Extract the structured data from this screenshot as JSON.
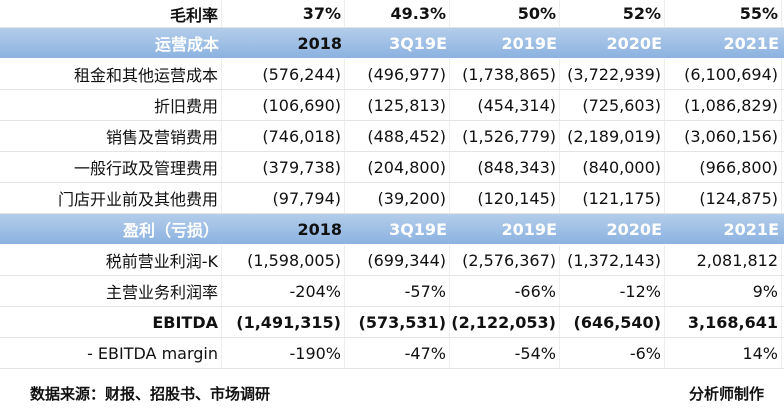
{
  "margin_row": {
    "label": "毛利率",
    "values": [
      "37%",
      "49.3%",
      "50%",
      "52%",
      "55%"
    ]
  },
  "sections": [
    {
      "header": {
        "label": "运营成本",
        "columns": [
          "2018",
          "3Q19E",
          "2019E",
          "2020E",
          "2021E"
        ]
      },
      "rows": [
        {
          "label": "租金和其他运营成本",
          "values": [
            "(576,244)",
            "(496,977)",
            "(1,738,865)",
            "(3,722,939)",
            "(6,100,694)"
          ]
        },
        {
          "label": "折旧费用",
          "values": [
            "(106,690)",
            "(125,813)",
            "(454,314)",
            "(725,603)",
            "(1,086,829)"
          ]
        },
        {
          "label": "销售及营销费用",
          "values": [
            "(746,018)",
            "(488,452)",
            "(1,526,779)",
            "(2,189,019)",
            "(3,060,156)"
          ]
        },
        {
          "label": "一般行政及管理费用",
          "values": [
            "(379,738)",
            "(204,800)",
            "(848,343)",
            "(840,000)",
            "(966,800)"
          ]
        },
        {
          "label": "门店开业前及其他费用",
          "values": [
            "(97,794)",
            "(39,200)",
            "(120,145)",
            "(121,175)",
            "(124,875)"
          ]
        }
      ]
    },
    {
      "header": {
        "label": "盈利（亏损）",
        "columns": [
          "2018",
          "3Q19E",
          "2019E",
          "2020E",
          "2021E"
        ]
      },
      "rows": [
        {
          "label": "税前营业利润-K",
          "values": [
            "(1,598,005)",
            "(699,344)",
            "(2,576,367)",
            "(1,372,143)",
            "2,081,812"
          ]
        },
        {
          "label": "主营业务利润率",
          "values": [
            "-204%",
            "-57%",
            "-66%",
            "-12%",
            "9%"
          ]
        },
        {
          "label": "EBITDA",
          "values": [
            "(1,491,315)",
            "(573,531)",
            "(2,122,053)",
            "(646,540)",
            "3,168,641"
          ]
        },
        {
          "label": "- EBITDA margin",
          "values": [
            "-190%",
            "-47%",
            "-54%",
            "-6%",
            "14%"
          ]
        }
      ]
    }
  ],
  "footer": {
    "source": "数据来源：财报、招股书、市场调研",
    "credit": "分析师制作"
  }
}
